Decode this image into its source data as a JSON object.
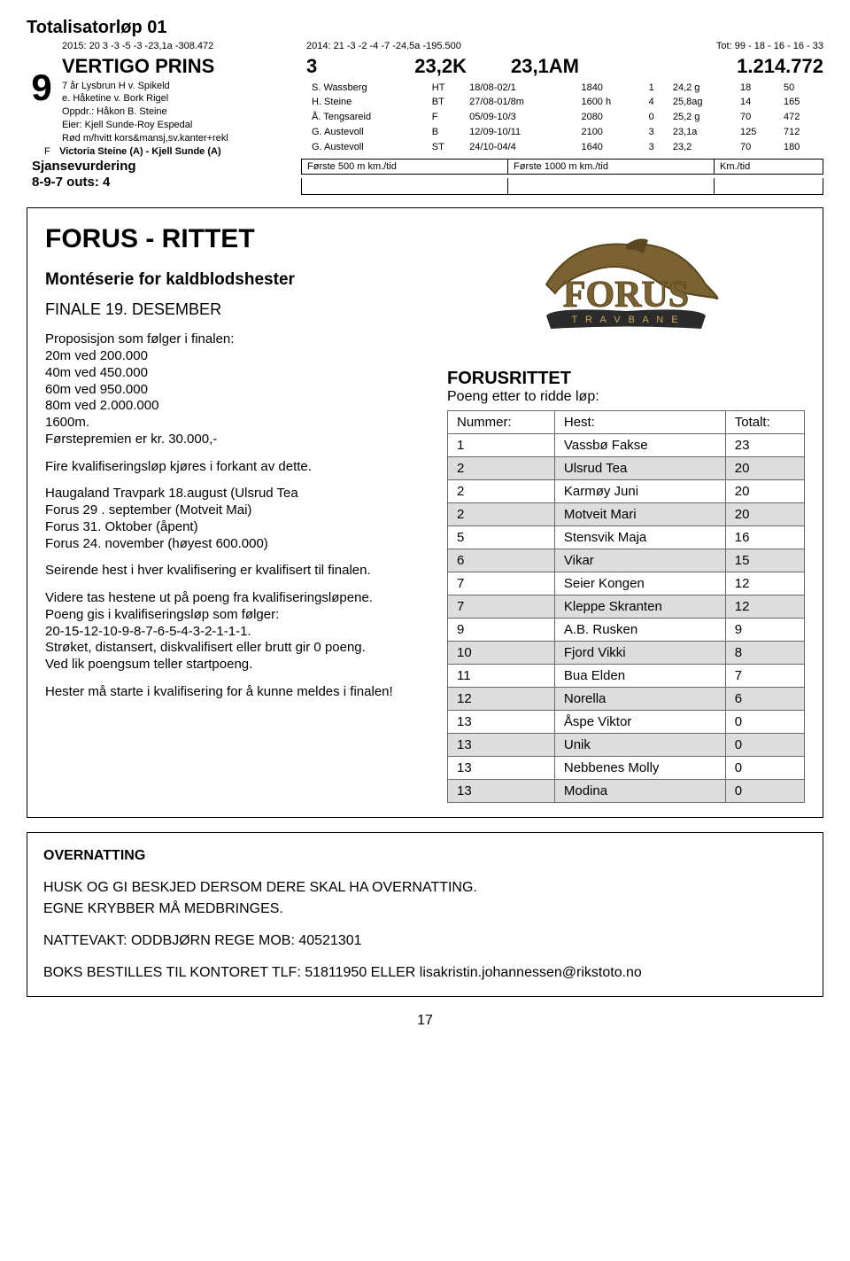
{
  "race": {
    "title": "Totalisatorløp 01",
    "stats2015": "2015: 20   3   -3   -5   -3  -23,1a -308.472",
    "stats2014": "2014:  21   -3   -2   -4   -7   -24,5a  -195.500",
    "tot": "Tot: 99 - 18 - 16 - 16 - 33",
    "number": "9",
    "name": "VERTIGO PRINS",
    "bigNum": "3",
    "k1": "23,2K",
    "k2": "23,1AM",
    "money": "1.214.772",
    "line1": "7 år Lysbrun H v. Spikeld",
    "line2": "e. Håketine v. Bork Rigel",
    "line3": "Oppdr.: Håkon B. Steine",
    "line4": "Eier: Kjell Sunde-Roy Espedal",
    "line5": "Rød m/hvitt kors&mansj,sv.kanter+rekl",
    "line6f": "F",
    "line6": "Victoria Steine (A) - Kjell Sunde (A)",
    "results": [
      [
        "S. Wassberg",
        "HT",
        "18/08-02/1",
        "1840",
        "1",
        "24,2 g",
        "18",
        "50"
      ],
      [
        "H. Steine",
        "BT",
        "27/08-01/8m",
        "1600 h",
        "4",
        "25,8ag",
        "14",
        "165"
      ],
      [
        "Å. Tengsareid",
        "F",
        "05/09-10/3",
        "2080",
        "0",
        "25,2 g",
        "70",
        "472"
      ],
      [
        "G. Austevoll",
        "B",
        "12/09-10/11",
        "2100",
        "3",
        "23,1a",
        "125",
        "712"
      ],
      [
        "G. Austevoll",
        "ST",
        "24/10-04/4",
        "1640",
        "3",
        "23,2",
        "70",
        "180"
      ]
    ],
    "sjanseLabel1": "Sjansevurdering",
    "sjanseLabel2": "8-9-7 outs: 4",
    "sjanseH1": "Første 500 m km./tid",
    "sjanseH2": "Første 1000 m km./tid",
    "sjanseH3": "Km./tid"
  },
  "forus": {
    "title": "FORUS - RITTET",
    "sub1": "Montéserie for kaldblodshester",
    "sub2": "FINALE 19. DESEMBER",
    "p1": "Proposisjon som følger i finalen:\n20m ved 200.000\n40m ved 450.000\n60m ved 950.000\n80m ved 2.000.000\n1600m.\nFørstepremien er kr. 30.000,-",
    "p2": "Fire kvalifiseringsløp kjøres i forkant av dette.",
    "p3": "Haugaland Travpark 18.august (Ulsrud Tea\nForus 29 . september (Motveit Mai)\nForus 31. Oktober (åpent)\nForus 24. november (høyest 600.000)",
    "p4": "Seirende hest i hver kvalifisering er kvalifisert til finalen.",
    "p5": "Videre tas hestene ut på poeng fra kvalifiseringsløpene.\nPoeng gis i kvalifiseringsløp som følger:\n20-15-12-10-9-8-7-6-5-4-3-2-1-1-1.\nStrøket, distansert, diskvalifisert eller brutt gir 0 poeng.\nVed lik poengsum teller startpoeng.",
    "p6": "Hester må starte i kvalifisering for å kunne meldes i finalen!",
    "rightTitle": "FORUSRITTET",
    "rightSub": "Poeng etter to ridde løp:",
    "tableHead": [
      "Nummer:",
      "Hest:",
      "Totalt:"
    ],
    "tableRows": [
      [
        "1",
        "Vassbø Fakse",
        "23"
      ],
      [
        "2",
        "Ulsrud Tea",
        "20"
      ],
      [
        "2",
        "Karmøy Juni",
        "20"
      ],
      [
        "2",
        "Motveit Mari",
        "20"
      ],
      [
        "5",
        "Stensvik Maja",
        "16"
      ],
      [
        "6",
        "Vikar",
        "15"
      ],
      [
        "7",
        "Seier Kongen",
        "12"
      ],
      [
        "7",
        "Kleppe Skranten",
        "12"
      ],
      [
        "9",
        "A.B. Rusken",
        "9"
      ],
      [
        "10",
        "Fjord Vikki",
        "8"
      ],
      [
        "11",
        "Bua Elden",
        "7"
      ],
      [
        "12",
        "Norella",
        "6"
      ],
      [
        "13",
        "Åspe Viktor",
        "0"
      ],
      [
        "13",
        "Unik",
        "0"
      ],
      [
        "13",
        "Nebbenes Molly",
        "0"
      ],
      [
        "13",
        "Modina",
        "0"
      ]
    ],
    "logoText": "FORUS",
    "logoRibbon": "T R A V B A N E",
    "logoColors": {
      "horse": "#7a6231",
      "horseDark": "#5a4620",
      "text": "#7a6231",
      "ribbon": "#2b2b2b",
      "ribbonText": "#c9a85a"
    }
  },
  "bottom": {
    "title": "OVERNATTING",
    "l1": "HUSK OG GI BESKJED DERSOM DERE SKAL HA OVERNATTING.",
    "l2": "EGNE KRYBBER MÅ MEDBRINGES.",
    "l3": "NATTEVAKT: ODDBJØRN REGE MOB: 40521301",
    "l4": "BOKS BESTILLES TIL KONTORET TLF: 51811950 ELLER lisakristin.johannessen@rikstoto.no"
  },
  "pageNum": "17"
}
